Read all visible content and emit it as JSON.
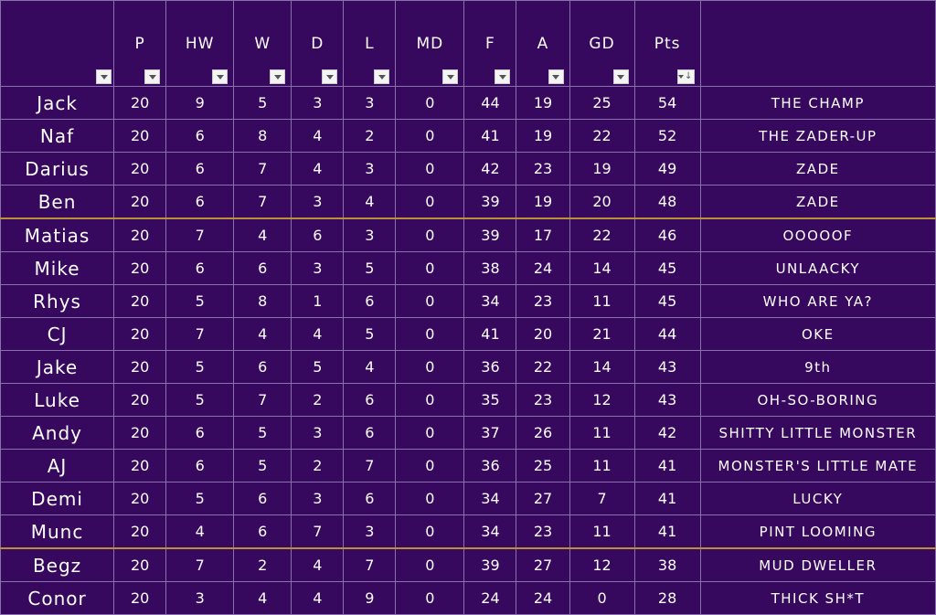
{
  "columns": [
    {
      "key": "p",
      "label": "P"
    },
    {
      "key": "hw",
      "label": "HW"
    },
    {
      "key": "w",
      "label": "W"
    },
    {
      "key": "d",
      "label": "D"
    },
    {
      "key": "l",
      "label": "L"
    },
    {
      "key": "md",
      "label": "MD"
    },
    {
      "key": "f",
      "label": "F"
    },
    {
      "key": "a",
      "label": "A"
    },
    {
      "key": "gd",
      "label": "GD"
    },
    {
      "key": "pts",
      "label": "Pts",
      "sorted": "descending"
    }
  ],
  "separator_after_rows": [
    4,
    14
  ],
  "colors": {
    "background": "#36085e",
    "grid": "#8a6fae",
    "separator": "#b8903a",
    "text": "#ffffff"
  },
  "rows": [
    {
      "name": "Jack",
      "p": "20",
      "hw": "9",
      "w": "5",
      "d": "3",
      "l": "3",
      "md": "0",
      "f": "44",
      "a": "19",
      "gd": "25",
      "pts": "54",
      "nickname": "THE CHAMP"
    },
    {
      "name": "Naf",
      "p": "20",
      "hw": "6",
      "w": "8",
      "d": "4",
      "l": "2",
      "md": "0",
      "f": "41",
      "a": "19",
      "gd": "22",
      "pts": "52",
      "nickname": "THE ZADER-UP"
    },
    {
      "name": "Darius",
      "p": "20",
      "hw": "6",
      "w": "7",
      "d": "4",
      "l": "3",
      "md": "0",
      "f": "42",
      "a": "23",
      "gd": "19",
      "pts": "49",
      "nickname": "ZADE"
    },
    {
      "name": "Ben",
      "p": "20",
      "hw": "6",
      "w": "7",
      "d": "3",
      "l": "4",
      "md": "0",
      "f": "39",
      "a": "19",
      "gd": "20",
      "pts": "48",
      "nickname": "ZADE"
    },
    {
      "name": "Matias",
      "p": "20",
      "hw": "7",
      "w": "4",
      "d": "6",
      "l": "3",
      "md": "0",
      "f": "39",
      "a": "17",
      "gd": "22",
      "pts": "46",
      "nickname": "OOOOOF"
    },
    {
      "name": "Mike",
      "p": "20",
      "hw": "6",
      "w": "6",
      "d": "3",
      "l": "5",
      "md": "0",
      "f": "38",
      "a": "24",
      "gd": "14",
      "pts": "45",
      "nickname": "UNLAACKY"
    },
    {
      "name": "Rhys",
      "p": "20",
      "hw": "5",
      "w": "8",
      "d": "1",
      "l": "6",
      "md": "0",
      "f": "34",
      "a": "23",
      "gd": "11",
      "pts": "45",
      "nickname": "WHO ARE YA?"
    },
    {
      "name": "CJ",
      "p": "20",
      "hw": "7",
      "w": "4",
      "d": "4",
      "l": "5",
      "md": "0",
      "f": "41",
      "a": "20",
      "gd": "21",
      "pts": "44",
      "nickname": "OKE"
    },
    {
      "name": "Jake",
      "p": "20",
      "hw": "5",
      "w": "6",
      "d": "5",
      "l": "4",
      "md": "0",
      "f": "36",
      "a": "22",
      "gd": "14",
      "pts": "43",
      "nickname": "9th"
    },
    {
      "name": "Luke",
      "p": "20",
      "hw": "5",
      "w": "7",
      "d": "2",
      "l": "6",
      "md": "0",
      "f": "35",
      "a": "23",
      "gd": "12",
      "pts": "43",
      "nickname": "OH-SO-BORING"
    },
    {
      "name": "Andy",
      "p": "20",
      "hw": "6",
      "w": "5",
      "d": "3",
      "l": "6",
      "md": "0",
      "f": "37",
      "a": "26",
      "gd": "11",
      "pts": "42",
      "nickname": "SHITTY LITTLE MONSTER"
    },
    {
      "name": "AJ",
      "p": "20",
      "hw": "6",
      "w": "5",
      "d": "2",
      "l": "7",
      "md": "0",
      "f": "36",
      "a": "25",
      "gd": "11",
      "pts": "41",
      "nickname": "MONSTER'S LITTLE MATE"
    },
    {
      "name": "Demi",
      "p": "20",
      "hw": "5",
      "w": "6",
      "d": "3",
      "l": "6",
      "md": "0",
      "f": "34",
      "a": "27",
      "gd": "7",
      "pts": "41",
      "nickname": "LUCKY"
    },
    {
      "name": "Munc",
      "p": "20",
      "hw": "4",
      "w": "6",
      "d": "7",
      "l": "3",
      "md": "0",
      "f": "34",
      "a": "23",
      "gd": "11",
      "pts": "41",
      "nickname": "PINT LOOMING"
    },
    {
      "name": "Begz",
      "p": "20",
      "hw": "7",
      "w": "2",
      "d": "4",
      "l": "7",
      "md": "0",
      "f": "39",
      "a": "27",
      "gd": "12",
      "pts": "38",
      "nickname": "MUD DWELLER"
    },
    {
      "name": "Conor",
      "p": "20",
      "hw": "3",
      "w": "4",
      "d": "4",
      "l": "9",
      "md": "0",
      "f": "24",
      "a": "24",
      "gd": "0",
      "pts": "28",
      "nickname": "THICK SH*T"
    }
  ]
}
